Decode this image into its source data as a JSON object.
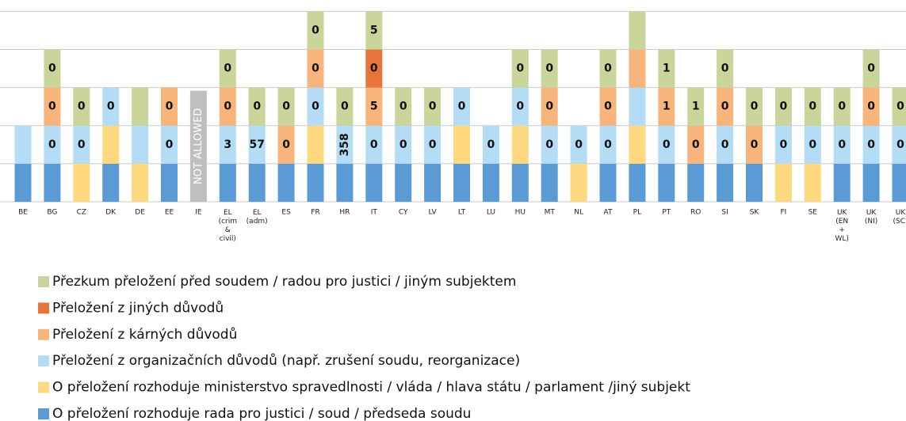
{
  "chart_data": {
    "type": "stacked_bar",
    "categories": [
      "BE",
      "BG",
      "CZ",
      "DK",
      "DE",
      "EE",
      "IE",
      "EL (crim & civil)",
      "EL (adm)",
      "ES",
      "FR",
      "HR",
      "IT",
      "CY",
      "LV",
      "LT",
      "LU",
      "HU",
      "MT",
      "NL",
      "AT",
      "PL",
      "PT",
      "RO",
      "SI",
      "SK",
      "FI",
      "SE",
      "UK (EN + WL)",
      "UK (NI)",
      "UK (SC)"
    ],
    "ylim": [
      0,
      5.3
    ],
    "yticks": [
      0,
      1,
      2,
      3,
      4,
      5
    ],
    "grid": true,
    "annotations": [
      {
        "category": "IE",
        "text": "NOT ALLOWED"
      }
    ],
    "series": [
      {
        "name": "O přeložení rozhoduje rada pro justici / soud / předseda soudu",
        "color": "#5b9bd5",
        "values": [
          1,
          1,
          null,
          1,
          null,
          1,
          null,
          1,
          1,
          1,
          1,
          1,
          1,
          1,
          1,
          1,
          1,
          1,
          1,
          null,
          1,
          1,
          1,
          1,
          1,
          1,
          null,
          null,
          1,
          1,
          1
        ],
        "labels": [
          null,
          null,
          null,
          null,
          null,
          null,
          null,
          null,
          null,
          null,
          null,
          null,
          null,
          null,
          null,
          null,
          null,
          null,
          null,
          null,
          null,
          null,
          null,
          null,
          null,
          null,
          null,
          null,
          null,
          null,
          null
        ]
      },
      {
        "name": "O přeložení rozhoduje ministerstvo spravedlnosti / vláda / hlava státu / parlament /jiný subjekt",
        "color": "#fed97f",
        "values": [
          null,
          null,
          1,
          1,
          1,
          null,
          null,
          null,
          null,
          null,
          1,
          null,
          null,
          null,
          null,
          1,
          null,
          1,
          null,
          1,
          null,
          1,
          null,
          null,
          null,
          null,
          1,
          1,
          null,
          null,
          null
        ],
        "labels": [
          null,
          null,
          null,
          null,
          null,
          null,
          null,
          null,
          null,
          null,
          null,
          null,
          null,
          null,
          null,
          null,
          null,
          null,
          null,
          null,
          null,
          null,
          null,
          null,
          null,
          null,
          null,
          null,
          null,
          null,
          null
        ]
      },
      {
        "name": "Přeložení z organizačních důvodů (např. zrušení soudu, reorganizace)",
        "color": "#b5dcf5",
        "values": [
          1,
          1,
          1,
          1,
          1,
          1,
          null,
          1,
          1,
          null,
          1,
          1,
          1,
          1,
          1,
          1,
          1,
          1,
          1,
          1,
          1,
          1,
          1,
          null,
          1,
          null,
          1,
          1,
          1,
          1,
          1
        ],
        "labels": [
          null,
          "0",
          "0",
          "0",
          null,
          "0",
          null,
          "3",
          "57",
          null,
          "0",
          "358",
          "0",
          "0",
          "0",
          "0",
          "0",
          "0",
          "0",
          "0",
          "0",
          null,
          "0",
          null,
          "0",
          null,
          "0",
          "0",
          "0",
          "0",
          "0"
        ]
      },
      {
        "name": "Přeložení z kárných důvodů",
        "color": "#f8b57b",
        "values": [
          null,
          1,
          null,
          null,
          null,
          1,
          null,
          1,
          null,
          1,
          1,
          null,
          1,
          null,
          null,
          null,
          null,
          null,
          1,
          null,
          1,
          1,
          1,
          1,
          1,
          1,
          null,
          null,
          null,
          1,
          null
        ],
        "labels": [
          null,
          "0",
          null,
          null,
          null,
          "0",
          null,
          "0",
          null,
          "0",
          "0",
          null,
          "5",
          null,
          null,
          null,
          null,
          null,
          "0",
          null,
          "0",
          null,
          "1",
          "0",
          "0",
          "0",
          null,
          null,
          null,
          "0",
          null
        ]
      },
      {
        "name": "Přeložení z jiných důvodů",
        "color": "#e8743b",
        "values": [
          null,
          null,
          null,
          null,
          null,
          null,
          null,
          null,
          null,
          null,
          null,
          null,
          1,
          null,
          null,
          null,
          null,
          null,
          null,
          null,
          null,
          null,
          null,
          null,
          null,
          null,
          null,
          null,
          null,
          null,
          null
        ],
        "labels": [
          null,
          null,
          null,
          null,
          null,
          null,
          null,
          null,
          null,
          null,
          null,
          null,
          "0",
          null,
          null,
          null,
          null,
          null,
          null,
          null,
          null,
          null,
          null,
          null,
          null,
          null,
          null,
          null,
          null,
          null,
          null
        ]
      },
      {
        "name": "Přezkum přeložení před soudem / radou pro justici / jiným subjektem",
        "color": "#c9d59b",
        "values": [
          null,
          1,
          1,
          null,
          1,
          null,
          null,
          1,
          1,
          1,
          1,
          1,
          1,
          1,
          1,
          null,
          null,
          1,
          1,
          null,
          1,
          1,
          1,
          1,
          1,
          1,
          1,
          1,
          1,
          1,
          1
        ],
        "labels": [
          null,
          "0",
          "0",
          null,
          null,
          null,
          null,
          "0",
          "0",
          "0",
          "0",
          "0",
          "5",
          "0",
          "0",
          null,
          null,
          "0",
          "0",
          null,
          "0",
          null,
          "1",
          "1",
          "0",
          "0",
          "0",
          "0",
          "0",
          "0",
          "0"
        ]
      }
    ]
  }
}
